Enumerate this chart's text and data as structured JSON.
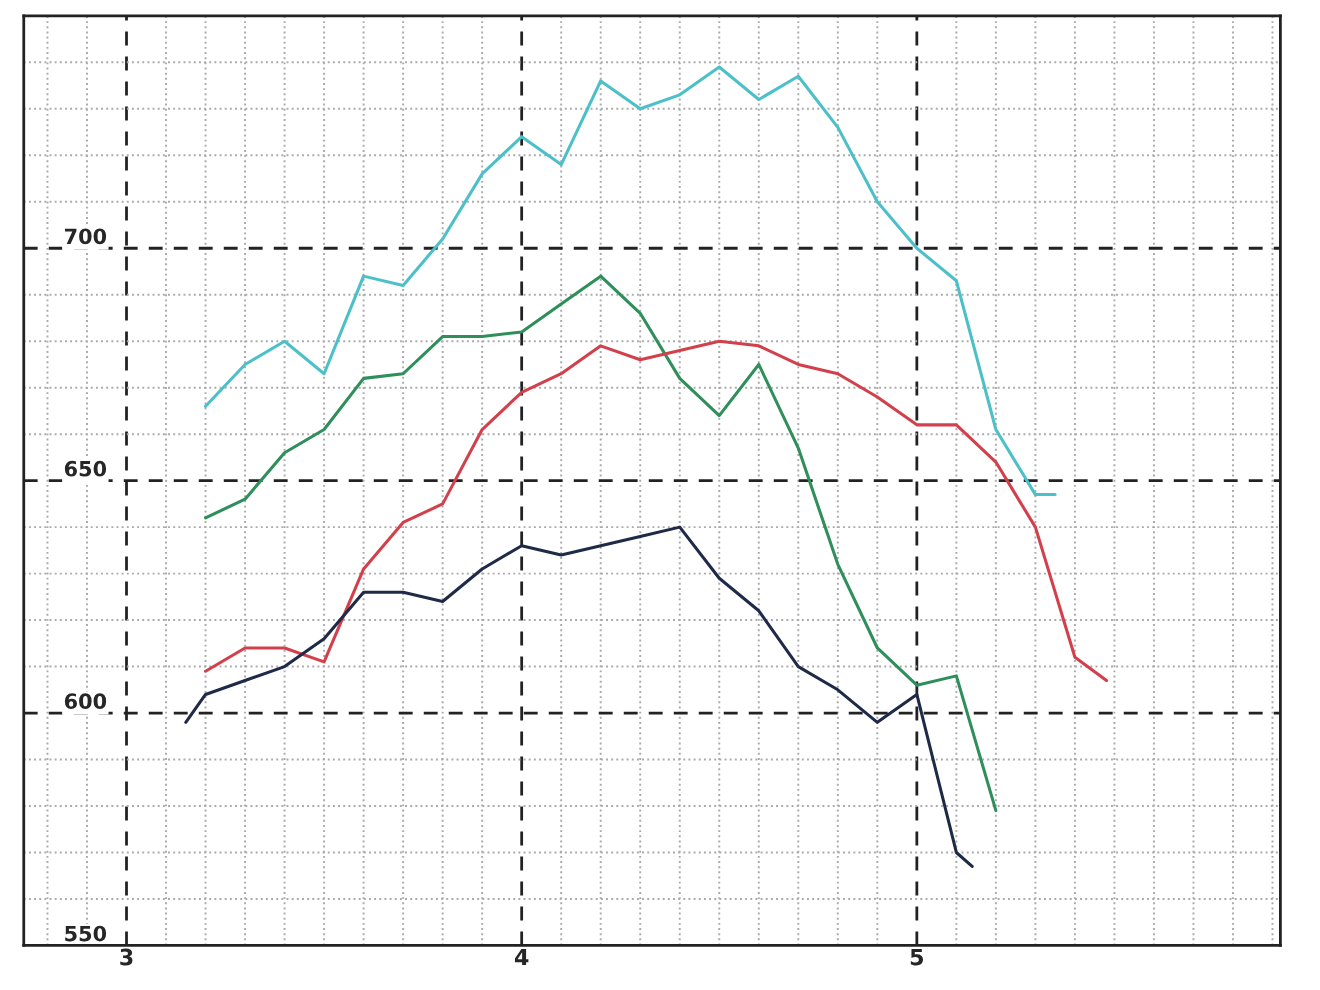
{
  "chart_data": {
    "type": "line",
    "xlim": [
      2.74,
      5.92
    ],
    "ylim": [
      550,
      750
    ],
    "xticks": [
      3,
      4,
      5
    ],
    "yticks": [
      550,
      600,
      650,
      700
    ],
    "grid": true,
    "marker": "none",
    "line_style": "solid",
    "series": [
      {
        "color": "#4cc0c8",
        "x": [
          3.2,
          3.3,
          3.4,
          3.5,
          3.6,
          3.7,
          3.8,
          3.9,
          4.0,
          4.1,
          4.2,
          4.3,
          4.4,
          4.5,
          4.6,
          4.7,
          4.8,
          4.9,
          5.0,
          5.1,
          5.2,
          5.3,
          5.35
        ],
        "values": [
          666,
          675,
          680,
          673,
          694,
          692,
          702,
          716,
          724,
          718,
          736,
          730,
          733,
          739,
          732,
          737,
          726,
          710,
          700,
          693,
          661,
          647,
          647
        ]
      },
      {
        "color": "#2e8f5a",
        "x": [
          3.2,
          3.3,
          3.4,
          3.5,
          3.6,
          3.7,
          3.8,
          3.9,
          4.0,
          4.1,
          4.2,
          4.3,
          4.4,
          4.5,
          4.6,
          4.7,
          4.8,
          4.9,
          5.0,
          5.1,
          5.2
        ],
        "values": [
          642,
          646,
          656,
          661,
          672,
          673,
          681,
          681,
          682,
          688,
          694,
          686,
          672,
          664,
          675,
          657,
          632,
          614,
          606,
          608,
          579
        ]
      },
      {
        "color": "#d2404c",
        "x": [
          3.2,
          3.3,
          3.4,
          3.5,
          3.6,
          3.7,
          3.8,
          3.9,
          4.0,
          4.1,
          4.2,
          4.3,
          4.4,
          4.5,
          4.6,
          4.7,
          4.8,
          4.9,
          5.0,
          5.1,
          5.2,
          5.3,
          5.4,
          5.48
        ],
        "values": [
          609,
          614,
          614,
          611,
          631,
          641,
          645,
          661,
          669,
          673,
          679,
          676,
          678,
          680,
          679,
          675,
          673,
          668,
          662,
          662,
          654,
          640,
          612,
          607
        ]
      },
      {
        "color": "#1f2a48",
        "x": [
          3.15,
          3.2,
          3.3,
          3.4,
          3.5,
          3.6,
          3.7,
          3.8,
          3.9,
          4.0,
          4.1,
          4.2,
          4.3,
          4.4,
          4.5,
          4.6,
          4.7,
          4.8,
          4.9,
          5.0,
          5.1,
          5.14
        ],
        "values": [
          598,
          604,
          607,
          610,
          616,
          626,
          626,
          624,
          631,
          636,
          634,
          636,
          638,
          640,
          629,
          622,
          610,
          605,
          598,
          604,
          570,
          567
        ]
      }
    ]
  }
}
